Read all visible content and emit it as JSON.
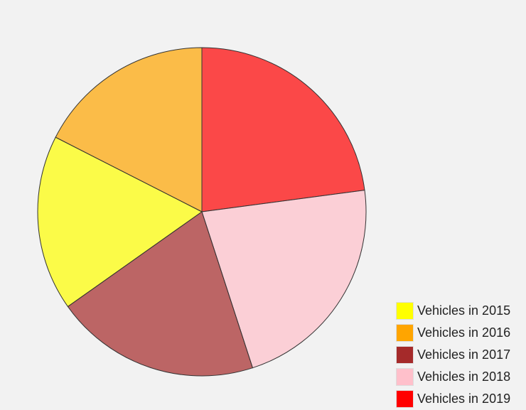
{
  "chart_data": {
    "type": "pie",
    "title": "",
    "legend_position": "bottom-right",
    "start_angle": "12 o'clock, clockwise",
    "slices": [
      {
        "label": "Vehicles in 2019",
        "value": 22.9,
        "color": "#ff0000"
      },
      {
        "label": "Vehicles in 2018",
        "value": 22.1,
        "color": "#ffc0cb"
      },
      {
        "label": "Vehicles in 2017",
        "value": 20.2,
        "color": "#a52a2a"
      },
      {
        "label": "Vehicles in 2015",
        "value": 17.3,
        "color": "#ffff00"
      },
      {
        "label": "Vehicles in 2016",
        "value": 17.5,
        "color": "#ffa500"
      }
    ]
  },
  "legend": {
    "items": [
      {
        "label": "Vehicles in 2015",
        "color": "#ffff00"
      },
      {
        "label": "Vehicles in 2016",
        "color": "#ffa500"
      },
      {
        "label": "Vehicles in 2017",
        "color": "#a52a2a"
      },
      {
        "label": "Vehicles in 2018",
        "color": "#ffc0cb"
      },
      {
        "label": "Vehicles in 2019",
        "color": "#ff0000"
      }
    ]
  }
}
